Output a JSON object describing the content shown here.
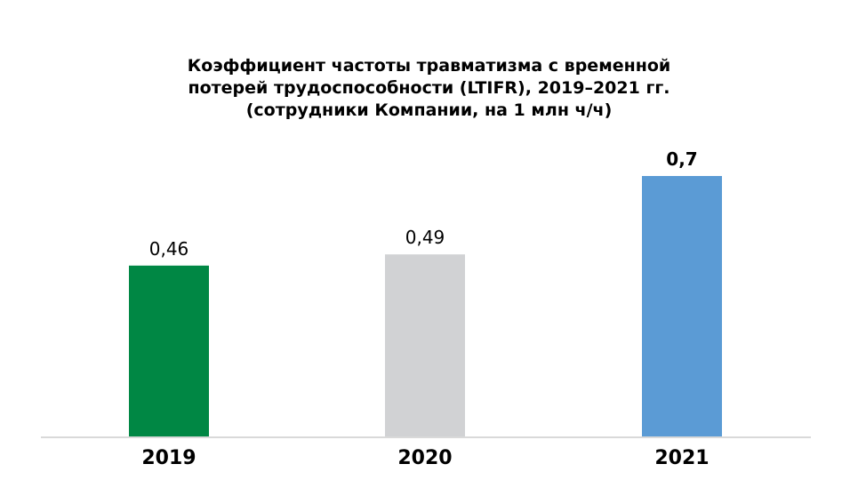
{
  "chart_data": {
    "type": "bar",
    "title_lines": [
      "Коэффициент частоты травматизма с временной",
      "потерей трудоспособности (LTIFR), 2019–2021 гг.",
      "(сотрудники Компании, на 1 млн ч/ч)"
    ],
    "categories": [
      "2019",
      "2020",
      "2021"
    ],
    "values": [
      0.46,
      0.49,
      0.7
    ],
    "value_labels": [
      "0,46",
      "0,49",
      "0,7"
    ],
    "bold_value_labels": [
      false,
      false,
      true
    ],
    "bar_colors": [
      "#008744",
      "#d1d2d4",
      "#5b9bd5"
    ],
    "axis_line_color": "#d9d9d9",
    "ylim": [
      0,
      0.7
    ],
    "grid": false,
    "legend": "none",
    "xlabel": "",
    "ylabel": ""
  }
}
